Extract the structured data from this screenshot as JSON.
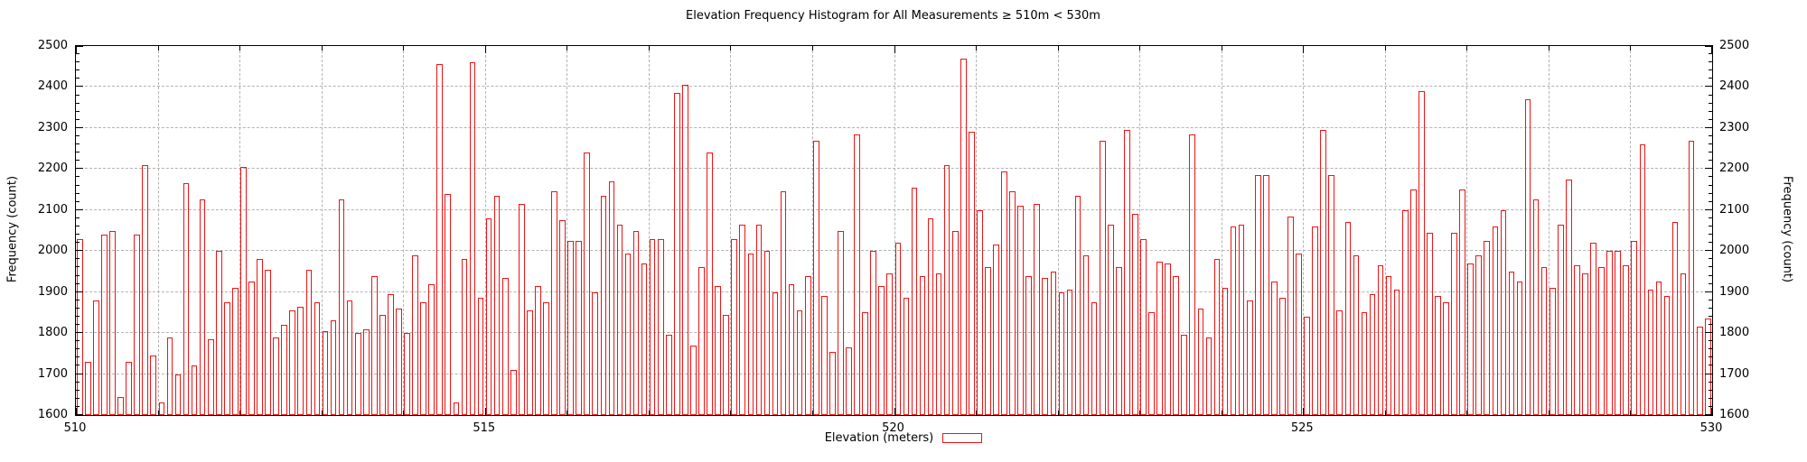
{
  "title": "Elevation Frequency Histogram for All Measurements ≥ 510m < 530m",
  "axes": {
    "x_label": "Elevation (meters)",
    "y_label_left": "Frequency (count)",
    "y_label_right": "Frequency (count)",
    "x_tick_labels": [
      "510",
      "515",
      "520",
      "525",
      "530"
    ],
    "y_tick_labels": [
      "1600",
      "1700",
      "1800",
      "1900",
      "2000",
      "2100",
      "2200",
      "2300",
      "2400",
      "2500"
    ]
  },
  "legend": {
    "label": "",
    "swatch": "red-outline-box"
  },
  "colors": {
    "bar_outline": "#ef1414",
    "grid": "#b3b3b3",
    "axis": "#000000",
    "background": "#ffffff",
    "text": "#000000"
  },
  "chart_data": {
    "type": "bar",
    "title": "Elevation Frequency Histogram for All Measurements ≥ 510m < 530m",
    "xlabel": "Elevation (meters)",
    "ylabel": "Frequency (count)",
    "xlim": [
      510,
      530
    ],
    "ylim": [
      1600,
      2500
    ],
    "x_major_ticks": [
      510,
      515,
      520,
      525,
      530
    ],
    "x_minor_tick_step": 1,
    "y_major_tick_step": 100,
    "y_minor_tick_step": 20,
    "grid": true,
    "bin_start": 510,
    "bin_width": 0.1,
    "values": [
      2030,
      1730,
      1880,
      2040,
      2050,
      1645,
      1730,
      2040,
      2210,
      1745,
      1630,
      1790,
      1700,
      2165,
      1720,
      2125,
      1785,
      2000,
      1875,
      1910,
      2205,
      1925,
      1980,
      1955,
      1790,
      1820,
      1855,
      1865,
      1955,
      1875,
      1805,
      1830,
      2125,
      1880,
      1800,
      1810,
      1940,
      1845,
      1895,
      1860,
      1800,
      1990,
      1875,
      1920,
      2455,
      2140,
      1630,
      1980,
      2460,
      1885,
      2080,
      2135,
      1935,
      1710,
      2115,
      1855,
      1915,
      1875,
      2145,
      2075,
      2025,
      2025,
      2240,
      1900,
      2135,
      2170,
      2065,
      1995,
      2050,
      1970,
      2030,
      2030,
      1795,
      2385,
      2405,
      1770,
      1960,
      2240,
      1915,
      1845,
      2030,
      2065,
      1995,
      2065,
      2000,
      1900,
      2145,
      1920,
      1855,
      1940,
      2270,
      1890,
      1755,
      2050,
      1765,
      2285,
      1850,
      2000,
      1915,
      1945,
      2020,
      1885,
      2155,
      1940,
      2080,
      1945,
      2210,
      2050,
      2470,
      2290,
      2100,
      1960,
      2015,
      2195,
      2145,
      2110,
      1940,
      2115,
      1935,
      1950,
      1900,
      1905,
      2135,
      1990,
      1875,
      2270,
      2065,
      1960,
      2295,
      2090,
      2030,
      1850,
      1975,
      1970,
      1940,
      1795,
      2285,
      1860,
      1790,
      1980,
      1910,
      2060,
      2065,
      1880,
      2185,
      2185,
      1925,
      1885,
      2085,
      1995,
      1840,
      2060,
      2295,
      2185,
      1855,
      2070,
      1990,
      1850,
      1895,
      1965,
      1940,
      1905,
      2100,
      2150,
      2390,
      2045,
      1890,
      1875,
      2045,
      2150,
      1970,
      1990,
      2025,
      2060,
      2100,
      1950,
      1925,
      2370,
      2125,
      1960,
      1910,
      2065,
      2175,
      1965,
      1945,
      2020,
      1960,
      2000,
      2000,
      1965,
      2025,
      2260,
      1905,
      1925,
      1890,
      2070,
      1945,
      2270,
      1815,
      1835
    ]
  }
}
